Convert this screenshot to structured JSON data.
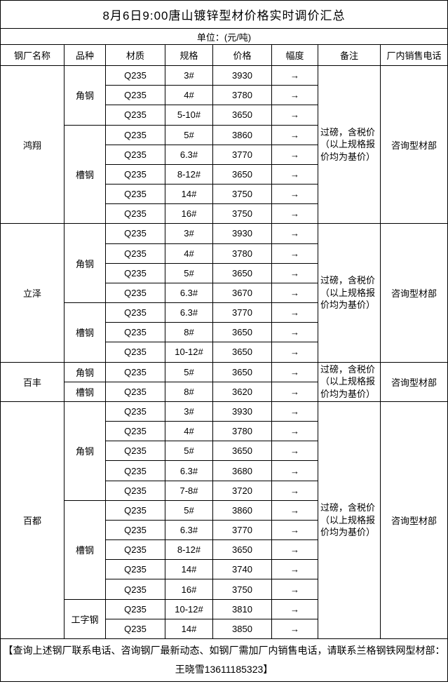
{
  "title": "8月6日9:00唐山镀锌型材价格实时调价汇总",
  "unit_label": "单位：(元/吨)",
  "columns": [
    "钢厂名称",
    "品种",
    "材质",
    "规格",
    "价格",
    "幅度",
    "备注",
    "厂内销售电话"
  ],
  "change_symbol": "→",
  "colors": {
    "border": "#000000",
    "text": "#000000",
    "background": "#ffffff"
  },
  "mills": [
    {
      "name": "鸿翔",
      "note": "过磅，含税价（以上规格报价均为基价）",
      "phone": "咨询型材部",
      "varieties": [
        {
          "name": "角钢",
          "rows": [
            {
              "material": "Q235",
              "spec": "3#",
              "price": "3930",
              "change": "→"
            },
            {
              "material": "Q235",
              "spec": "4#",
              "price": "3780",
              "change": "→"
            },
            {
              "material": "Q235",
              "spec": "5-10#",
              "price": "3650",
              "change": "→"
            }
          ]
        },
        {
          "name": "槽钢",
          "rows": [
            {
              "material": "Q235",
              "spec": "5#",
              "price": "3860",
              "change": "→"
            },
            {
              "material": "Q235",
              "spec": "6.3#",
              "price": "3770",
              "change": "→"
            },
            {
              "material": "Q235",
              "spec": "8-12#",
              "price": "3650",
              "change": "→"
            },
            {
              "material": "Q235",
              "spec": "14#",
              "price": "3750",
              "change": "→"
            },
            {
              "material": "Q235",
              "spec": "16#",
              "price": "3750",
              "change": "→"
            }
          ]
        }
      ]
    },
    {
      "name": "立泽",
      "note": "过磅，含税价（以上规格报价均为基价）",
      "phone": "咨询型材部",
      "varieties": [
        {
          "name": "角钢",
          "rows": [
            {
              "material": "Q235",
              "spec": "3#",
              "price": "3930",
              "change": "→"
            },
            {
              "material": "Q235",
              "spec": "4#",
              "price": "3780",
              "change": "→"
            },
            {
              "material": "Q235",
              "spec": "5#",
              "price": "3650",
              "change": "→"
            },
            {
              "material": "Q235",
              "spec": "6.3#",
              "price": "3670",
              "change": "→"
            }
          ]
        },
        {
          "name": "槽钢",
          "rows": [
            {
              "material": "Q235",
              "spec": "6.3#",
              "price": "3770",
              "change": "→"
            },
            {
              "material": "Q235",
              "spec": "8#",
              "price": "3650",
              "change": "→"
            },
            {
              "material": "Q235",
              "spec": "10-12#",
              "price": "3650",
              "change": "→"
            }
          ]
        }
      ]
    },
    {
      "name": "百丰",
      "note": "过磅，含税价（以上规格报价均为基价）",
      "phone": "咨询型材部",
      "varieties": [
        {
          "name": "角钢",
          "rows": [
            {
              "material": "Q235",
              "spec": "5#",
              "price": "3650",
              "change": "→"
            }
          ]
        },
        {
          "name": "槽钢",
          "rows": [
            {
              "material": "Q235",
              "spec": "8#",
              "price": "3620",
              "change": "→"
            }
          ]
        }
      ]
    },
    {
      "name": "百都",
      "note": "过磅，含税价（以上规格报价均为基价）",
      "phone": "咨询型材部",
      "varieties": [
        {
          "name": "角钢",
          "rows": [
            {
              "material": "Q235",
              "spec": "3#",
              "price": "3930",
              "change": "→"
            },
            {
              "material": "Q235",
              "spec": "4#",
              "price": "3780",
              "change": "→"
            },
            {
              "material": "Q235",
              "spec": "5#",
              "price": "3650",
              "change": "→"
            },
            {
              "material": "Q235",
              "spec": "6.3#",
              "price": "3680",
              "change": "→"
            },
            {
              "material": "Q235",
              "spec": "7-8#",
              "price": "3720",
              "change": "→"
            }
          ]
        },
        {
          "name": "槽钢",
          "rows": [
            {
              "material": "Q235",
              "spec": "5#",
              "price": "3860",
              "change": "→"
            },
            {
              "material": "Q235",
              "spec": "6.3#",
              "price": "3770",
              "change": "→"
            },
            {
              "material": "Q235",
              "spec": "8-12#",
              "price": "3650",
              "change": "→"
            },
            {
              "material": "Q235",
              "spec": "14#",
              "price": "3740",
              "change": "→"
            },
            {
              "material": "Q235",
              "spec": "16#",
              "price": "3750",
              "change": "→"
            }
          ]
        },
        {
          "name": "工字钢",
          "rows": [
            {
              "material": "Q235",
              "spec": "10-12#",
              "price": "3810",
              "change": "→"
            },
            {
              "material": "Q235",
              "spec": "14#",
              "price": "3850",
              "change": "→"
            }
          ]
        }
      ]
    }
  ],
  "footer": "【查询上述钢厂联系电话、咨询钢厂最新动态、如钢厂需加厂内销售电话，请联系兰格钢铁网型材部：王晓雪13611185323】"
}
